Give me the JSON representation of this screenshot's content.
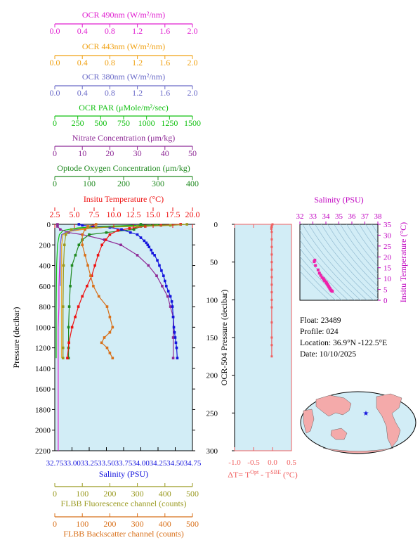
{
  "chart_data": [
    {
      "type": "line",
      "panel": "main-profile",
      "y_axis": {
        "label": "Pressure (decibar)",
        "range": [
          2200,
          0
        ],
        "ticks": [
          0,
          200,
          400,
          600,
          800,
          1000,
          1200,
          1400,
          1600,
          1800,
          2000,
          2200
        ],
        "tick_labels": [
          "0",
          "200",
          "400",
          "600",
          "800",
          "1000",
          "1200",
          "1400",
          "1600",
          "1800",
          "2000",
          "2200"
        ]
      },
      "x_axes": [
        {
          "id": "ocr490",
          "label": "OCR 490nm (W/m²/nm)",
          "color": "#e01fd0",
          "range": [
            0,
            2.0
          ],
          "ticks": [
            0,
            0.4,
            0.8,
            1.2,
            1.6,
            2.0
          ],
          "tick_labels": [
            "0.0",
            "0.4",
            "0.8",
            "1.2",
            "1.6",
            "2.0"
          ]
        },
        {
          "id": "ocr443",
          "label": "OCR 443nm (W/m²/nm)",
          "color": "#f0a010",
          "range": [
            0,
            2.0
          ],
          "ticks": [
            0,
            0.4,
            0.8,
            1.2,
            1.6,
            2.0
          ],
          "tick_labels": [
            "0.0",
            "0.4",
            "0.8",
            "1.2",
            "1.6",
            "2.0"
          ]
        },
        {
          "id": "ocr380",
          "label": "OCR 380nm (W/m²/nm)",
          "color": "#6a6ac8",
          "range": [
            0,
            2.0
          ],
          "ticks": [
            0,
            0.4,
            0.8,
            1.2,
            1.6,
            2.0
          ],
          "tick_labels": [
            "0.0",
            "0.4",
            "0.8",
            "1.2",
            "1.6",
            "2.0"
          ]
        },
        {
          "id": "par",
          "label": "OCR PAR (μMole/m²/sec)",
          "color": "#11c011",
          "range": [
            0,
            1500
          ],
          "ticks": [
            0,
            250,
            500,
            750,
            1000,
            1250,
            1500
          ],
          "tick_labels": [
            "0",
            "250",
            "500",
            "750",
            "1000",
            "1250",
            "1500"
          ]
        },
        {
          "id": "nitrate",
          "label": "Nitrate Concentration (μm/kg)",
          "color": "#8e2a96",
          "range": [
            0,
            50
          ],
          "ticks": [
            0,
            10,
            20,
            30,
            40,
            50
          ],
          "tick_labels": [
            "0",
            "10",
            "20",
            "30",
            "40",
            "50"
          ]
        },
        {
          "id": "oxygen",
          "label": "Optode Oxygen Concentration (μm/kg)",
          "color": "#208a20",
          "range": [
            0,
            400
          ],
          "ticks": [
            0,
            100,
            200,
            300,
            400
          ],
          "tick_labels": [
            "0",
            "100",
            "200",
            "300",
            "400"
          ]
        },
        {
          "id": "temp",
          "label": "Insitu Temperature (°C)",
          "color": "#ee1111",
          "range": [
            2.5,
            20
          ],
          "ticks": [
            2.5,
            5,
            7.5,
            10,
            12.5,
            15,
            17.5,
            20
          ],
          "tick_labels": [
            "2.5",
            "5.0",
            "7.5",
            "10.0",
            "12.5",
            "15.0",
            "17.5",
            "20.0"
          ]
        },
        {
          "id": "sal",
          "label": "Salinity (PSU)",
          "color": "#1414dd",
          "range": [
            32.75,
            34.75
          ],
          "ticks": [
            32.75,
            33.0,
            33.25,
            33.5,
            33.75,
            34.0,
            34.25,
            34.5,
            34.75
          ],
          "tick_labels": [
            "32.75",
            "33.00",
            "33.25",
            "33.50",
            "33.75",
            "34.00",
            "34.25",
            "34.50",
            "34.75"
          ]
        },
        {
          "id": "fluor",
          "label": "FLBB Fluorescence channel (counts)",
          "color": "#9a9a22",
          "range": [
            0,
            500
          ],
          "ticks": [
            0,
            100,
            200,
            300,
            400,
            500
          ],
          "tick_labels": [
            "0",
            "100",
            "200",
            "300",
            "400",
            "500"
          ]
        },
        {
          "id": "bback",
          "label": "FLBB Backscatter channel (counts)",
          "color": "#d8701a",
          "range": [
            0,
            500
          ],
          "ticks": [
            0,
            100,
            200,
            300,
            400,
            500
          ],
          "tick_labels": [
            "0",
            "100",
            "200",
            "300",
            "400",
            "500"
          ]
        }
      ],
      "series": [
        {
          "axis": "ocr490",
          "marker": "none",
          "x": [
            1.4,
            0.9,
            0.5,
            0.2,
            0.1,
            0.08,
            0.07,
            0.06,
            0.06,
            0.05,
            0.05,
            0.05,
            0.05,
            0.05
          ],
          "y": [
            5,
            20,
            40,
            70,
            100,
            200,
            400,
            600,
            800,
            1000,
            1200,
            1600,
            2000,
            2200
          ]
        },
        {
          "axis": "ocr443",
          "marker": "none",
          "x": [
            1.5,
            0.9,
            0.5,
            0.2,
            0.12,
            0.1,
            0.1,
            0.1
          ],
          "y": [
            5,
            20,
            40,
            70,
            100,
            200,
            600,
            1300
          ]
        },
        {
          "axis": "ocr380",
          "marker": "none",
          "x": [
            1.2,
            0.8,
            0.4,
            0.18,
            0.1,
            0.08,
            0.08
          ],
          "y": [
            5,
            20,
            40,
            70,
            100,
            200,
            600
          ]
        },
        {
          "axis": "par",
          "marker": "none",
          "x": [
            1400,
            900,
            500,
            250,
            90,
            50,
            30,
            20,
            15,
            15
          ],
          "y": [
            2,
            10,
            20,
            35,
            60,
            100,
            200,
            400,
            800,
            1300
          ]
        },
        {
          "axis": "nitrate",
          "marker": "square",
          "x": [
            1,
            1,
            2,
            5,
            10,
            18,
            24,
            30,
            34,
            37,
            39,
            41,
            42,
            43,
            43,
            43
          ],
          "y": [
            0,
            20,
            50,
            80,
            100,
            150,
            200,
            300,
            400,
            500,
            600,
            700,
            800,
            900,
            1100,
            1300
          ]
        },
        {
          "axis": "oxygen",
          "marker": "square",
          "x": [
            250,
            250,
            230,
            150,
            100,
            80,
            70,
            60,
            50,
            45,
            42,
            40,
            40,
            40
          ],
          "y": [
            0,
            20,
            50,
            80,
            100,
            150,
            200,
            300,
            400,
            600,
            800,
            1000,
            1200,
            1300
          ]
        },
        {
          "axis": "temp",
          "marker": "square",
          "x": [
            18.5,
            16,
            14,
            12,
            10.5,
            9.5,
            9,
            8.5,
            8,
            7.6,
            7.2,
            6.6,
            6.0,
            5.5,
            5.1,
            4.7,
            4.3,
            4.1
          ],
          "y": [
            0,
            10,
            20,
            40,
            60,
            100,
            150,
            200,
            300,
            400,
            500,
            600,
            700,
            800,
            900,
            1000,
            1150,
            1300
          ]
        },
        {
          "axis": "sal",
          "marker": "square",
          "x": [
            33.1,
            33.15,
            33.3,
            33.55,
            33.72,
            33.85,
            33.95,
            34.0,
            34.05,
            34.08,
            34.1,
            34.12,
            34.15,
            34.17,
            34.2,
            34.24,
            34.27,
            34.3,
            34.33,
            34.35,
            34.37,
            34.4,
            34.43,
            34.45,
            34.46,
            34.47,
            34.48,
            34.49,
            34.5,
            34.51,
            34.52,
            34.53
          ],
          "y": [
            0,
            10,
            20,
            30,
            50,
            80,
            100,
            130,
            160,
            180,
            200,
            220,
            250,
            280,
            300,
            350,
            400,
            450,
            500,
            550,
            600,
            650,
            700,
            750,
            800,
            900,
            1000,
            1050,
            1100,
            1150,
            1200,
            1300
          ]
        },
        {
          "axis": "fluor",
          "marker": "square",
          "x": [
            480,
            420,
            300,
            150,
            60,
            40,
            35,
            32,
            30,
            30,
            30
          ],
          "y": [
            0,
            10,
            20,
            30,
            50,
            100,
            200,
            400,
            800,
            1200,
            1300
          ]
        },
        {
          "axis": "bback",
          "marker": "square",
          "x": [
            150,
            120,
            110,
            100,
            100,
            110,
            120,
            130,
            140,
            160,
            190,
            200,
            210,
            200,
            180,
            170,
            190,
            200,
            210
          ],
          "y": [
            0,
            20,
            50,
            100,
            200,
            300,
            400,
            500,
            600,
            700,
            800,
            900,
            1000,
            1050,
            1100,
            1150,
            1200,
            1250,
            1300
          ]
        }
      ]
    },
    {
      "type": "line",
      "panel": "delta-t",
      "ylabel": "OCR-504 Pressure (decibar)",
      "ylim": [
        300,
        0
      ],
      "y_ticks": [
        0,
        50,
        100,
        150,
        200,
        250,
        300
      ],
      "y_tick_labels": [
        "0",
        "50",
        "100",
        "150",
        "200",
        "250",
        "300"
      ],
      "xlim": [
        -1.0,
        0.5
      ],
      "x_ticks": [
        -1.0,
        -0.5,
        0.0,
        0.5
      ],
      "x_tick_labels": [
        "-1.0",
        "-0.5",
        "0.0",
        "0.5"
      ],
      "xlabel": "ΔT= T^Opt - T^SBE (°C)",
      "xlabel_parts": {
        "a": "ΔT= T",
        "sup1": "Opt",
        "b": " - T",
        "sup2": "SBE",
        "c": " (°C)"
      },
      "color": "#f06060",
      "series": [
        {
          "x": [
            0.0,
            -0.02,
            -0.03,
            -0.03,
            -0.02,
            -0.02,
            -0.02,
            -0.02,
            -0.02,
            -0.02,
            -0.02,
            -0.02,
            -0.02,
            -0.02,
            -0.02,
            -0.02,
            -0.02,
            -0.02,
            -0.02
          ],
          "y": [
            0,
            2,
            4,
            6,
            10,
            20,
            30,
            40,
            50,
            60,
            70,
            80,
            90,
            100,
            110,
            130,
            150,
            160,
            175
          ]
        }
      ]
    },
    {
      "type": "scatter",
      "panel": "ts-diagram",
      "xlabel": "Salinity (PSU)",
      "ylabel": "Insitu Temperature (°C)",
      "xlim": [
        32,
        38
      ],
      "ylim": [
        0,
        35
      ],
      "x_ticks": [
        32,
        33,
        34,
        35,
        36,
        37,
        38
      ],
      "x_tick_labels": [
        "32",
        "33",
        "34",
        "35",
        "36",
        "37",
        "38"
      ],
      "y_ticks": [
        0,
        5,
        10,
        15,
        20,
        25,
        30,
        35
      ],
      "y_tick_labels": [
        "0",
        "5",
        "10",
        "15",
        "20",
        "25",
        "30",
        "35"
      ],
      "color": "#ee22aa",
      "x": [
        33.15,
        33.1,
        33.2,
        33.4,
        33.5,
        33.6,
        33.7,
        33.8,
        33.85,
        33.9,
        34.0,
        34.05,
        34.1,
        34.15,
        34.2,
        34.25,
        34.3,
        34.35,
        34.4,
        34.45,
        34.5
      ],
      "y": [
        18.5,
        17.8,
        16.0,
        14.0,
        12.5,
        11.5,
        10.5,
        10.0,
        9.5,
        9.0,
        8.5,
        8.0,
        7.5,
        7.0,
        6.5,
        6.0,
        5.5,
        5.0,
        4.6,
        4.3,
        4.1
      ]
    }
  ],
  "info": {
    "float": "Float:  23489",
    "profile": "Profile:  024",
    "location": "Location:  36.9°N  -122.5°E",
    "date": "Date:  10/10/2025"
  },
  "colors": {
    "plot_bg": "#d2edf6",
    "ts_bg": "#d2edf6",
    "contour": "#8ab4cc",
    "map_ocean": "#d2edf6",
    "map_land": "#f4aaaa",
    "marker": "#1414dd"
  }
}
